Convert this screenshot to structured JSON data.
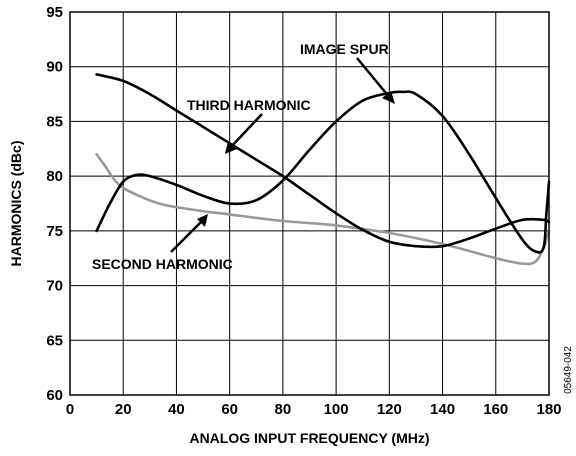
{
  "chart_data": {
    "type": "line",
    "title": "",
    "xlabel": "ANALOG INPUT FREQUENCY (MHz)",
    "ylabel": "HARMONICS (dBc)",
    "xlim": [
      0,
      180
    ],
    "ylim": [
      60,
      95
    ],
    "x_ticks": [
      "0",
      "20",
      "40",
      "60",
      "80",
      "100",
      "120",
      "140",
      "160",
      "180"
    ],
    "y_ticks": [
      "60",
      "65",
      "70",
      "75",
      "80",
      "85",
      "90",
      "95"
    ],
    "grid": true,
    "figure_id": "05649-042",
    "annotations": [
      "IMAGE SPUR",
      "THIRD HARMONIC",
      "SECOND HARMONIC"
    ],
    "series": [
      {
        "name": "THIRD HARMONIC",
        "color": "#000000",
        "points": [
          [
            10,
            89.3
          ],
          [
            20,
            88.7
          ],
          [
            30,
            87.5
          ],
          [
            40,
            86.0
          ],
          [
            50,
            84.5
          ],
          [
            60,
            83.0
          ],
          [
            70,
            81.5
          ],
          [
            80,
            80.0
          ],
          [
            90,
            78.3
          ],
          [
            100,
            76.6
          ],
          [
            110,
            75.1
          ],
          [
            120,
            74.0
          ],
          [
            130,
            73.6
          ],
          [
            140,
            73.6
          ],
          [
            150,
            74.3
          ],
          [
            160,
            75.2
          ],
          [
            170,
            76.0
          ],
          [
            178,
            76.0
          ],
          [
            180,
            75.8
          ]
        ]
      },
      {
        "name": "IMAGE SPUR",
        "color": "#000000",
        "points": [
          [
            10,
            75.0
          ],
          [
            15,
            77.5
          ],
          [
            20,
            79.5
          ],
          [
            25,
            80.1
          ],
          [
            30,
            80.0
          ],
          [
            40,
            79.2
          ],
          [
            50,
            78.2
          ],
          [
            60,
            77.5
          ],
          [
            70,
            77.8
          ],
          [
            80,
            79.6
          ],
          [
            90,
            82.4
          ],
          [
            100,
            85.0
          ],
          [
            110,
            86.9
          ],
          [
            120,
            87.6
          ],
          [
            125,
            87.7
          ],
          [
            130,
            87.5
          ],
          [
            140,
            85.5
          ],
          [
            150,
            82.0
          ],
          [
            160,
            78.0
          ],
          [
            170,
            74.2
          ],
          [
            175,
            73.1
          ],
          [
            178,
            73.5
          ],
          [
            179,
            76.5
          ],
          [
            180,
            79.5
          ]
        ]
      },
      {
        "name": "SECOND HARMONIC",
        "color": "#999999",
        "points": [
          [
            10,
            82.0
          ],
          [
            13,
            81.0
          ],
          [
            18,
            79.3
          ],
          [
            25,
            78.3
          ],
          [
            35,
            77.4
          ],
          [
            50,
            76.8
          ],
          [
            60,
            76.5
          ],
          [
            80,
            75.9
          ],
          [
            100,
            75.5
          ],
          [
            120,
            74.8
          ],
          [
            140,
            73.8
          ],
          [
            160,
            72.5
          ],
          [
            170,
            72.0
          ],
          [
            175,
            72.2
          ],
          [
            178,
            73.5
          ],
          [
            180,
            75.0
          ]
        ]
      }
    ]
  }
}
